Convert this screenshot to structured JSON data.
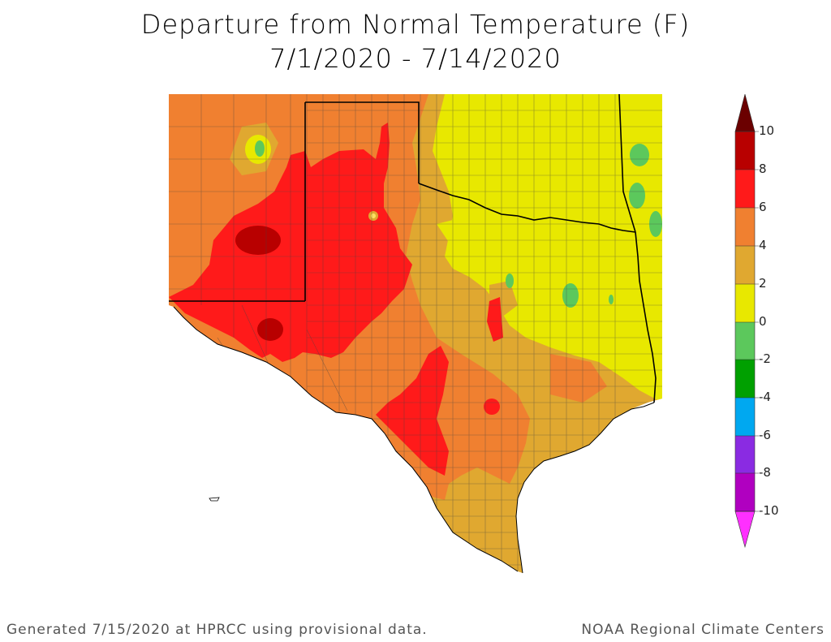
{
  "title": {
    "line1": "Departure from Normal Temperature (F)",
    "line2": "7/1/2020 - 7/14/2020"
  },
  "legend": {
    "labels": [
      "10",
      "8",
      "6",
      "4",
      "2",
      "0",
      "-2",
      "-4",
      "-6",
      "-8",
      "-10"
    ],
    "colors": {
      "c_8_10": "#b80000",
      "c_6_8": "#ff1a1a",
      "c_4_6": "#f08030",
      "c_2_4": "#e0a830",
      "c_0_2": "#e8e800",
      "c_m2_0": "#5cc85c",
      "c_m4_m2": "#00a000",
      "c_m6_m4": "#00a8f0",
      "c_m8_m6": "#8a2be2",
      "c_m10_m8": "#b000c0",
      "over": "#6b0000",
      "under": "#ff30ff"
    }
  },
  "footer": {
    "left": "Generated 7/15/2020 at HPRCC using provisional data.",
    "right": "NOAA Regional Climate Centers"
  }
}
